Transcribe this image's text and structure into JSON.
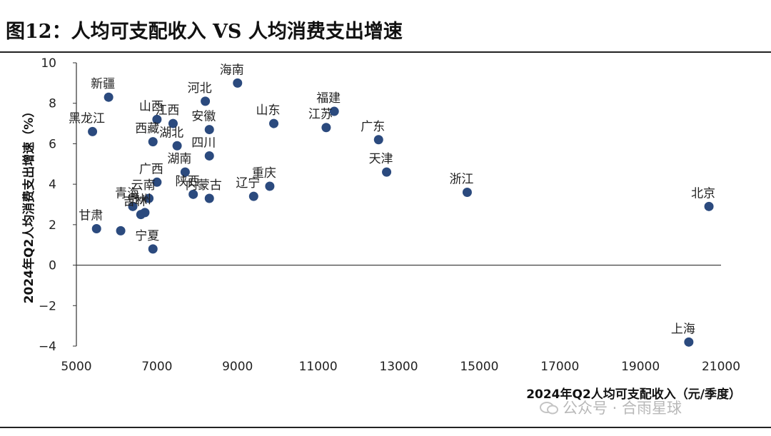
{
  "title": "图12：人均可支配收入 VS 人均消费支出增速",
  "watermark": "公众号 · 合雨星球",
  "colors": {
    "point": "#2b4a7e",
    "axis": "#333333"
  },
  "chart_data": {
    "type": "scatter",
    "title": "图12：人均可支配收入 VS 人均消费支出增速",
    "xlabel": "2024年Q2人均可支配收入（元/季度）",
    "ylabel": "2024年Q2人均消费支出增速（%）",
    "xlim": [
      5000,
      21000
    ],
    "ylim": [
      -4,
      10
    ],
    "xticks": [
      5000,
      7000,
      9000,
      11000,
      13000,
      15000,
      17000,
      19000,
      21000
    ],
    "yticks": [
      -4,
      -2,
      0,
      2,
      4,
      6,
      8,
      10
    ],
    "grid": false,
    "points": [
      {
        "label": "北京",
        "x": 20700,
        "y": 2.9
      },
      {
        "label": "上海",
        "x": 20200,
        "y": -3.8
      },
      {
        "label": "浙江",
        "x": 14700,
        "y": 3.6
      },
      {
        "label": "天津",
        "x": 12700,
        "y": 4.6
      },
      {
        "label": "广东",
        "x": 12500,
        "y": 6.2
      },
      {
        "label": "江苏",
        "x": 11200,
        "y": 6.8
      },
      {
        "label": "福建",
        "x": 11400,
        "y": 7.6
      },
      {
        "label": "山东",
        "x": 9900,
        "y": 7.0
      },
      {
        "label": "海南",
        "x": 9000,
        "y": 9.0
      },
      {
        "label": "河北",
        "x": 8200,
        "y": 8.1
      },
      {
        "label": "安徽",
        "x": 8300,
        "y": 6.7
      },
      {
        "label": "四川",
        "x": 8300,
        "y": 5.4
      },
      {
        "label": "重庆",
        "x": 9800,
        "y": 3.9
      },
      {
        "label": "辽宁",
        "x": 9400,
        "y": 3.4
      },
      {
        "label": "内蒙古",
        "x": 8300,
        "y": 3.3
      },
      {
        "label": "陕西",
        "x": 7900,
        "y": 3.5
      },
      {
        "label": "湖南",
        "x": 7700,
        "y": 4.6
      },
      {
        "label": "湖北",
        "x": 7500,
        "y": 5.9
      },
      {
        "label": "江西",
        "x": 7400,
        "y": 7.0
      },
      {
        "label": "山西",
        "x": 7000,
        "y": 7.2
      },
      {
        "label": "西藏",
        "x": 6900,
        "y": 6.1
      },
      {
        "label": "广西",
        "x": 7000,
        "y": 4.1
      },
      {
        "label": "云南",
        "x": 6800,
        "y": 3.3
      },
      {
        "label": "贵州",
        "x": 6700,
        "y": 2.6
      },
      {
        "label": "吉林",
        "x": 6600,
        "y": 2.5
      },
      {
        "label": "青海",
        "x": 6400,
        "y": 2.9
      },
      {
        "label": "甘肃",
        "x": 5500,
        "y": 1.8
      },
      {
        "label": "宁夏",
        "x": 6900,
        "y": 0.8
      },
      {
        "label": "新疆",
        "x": 5800,
        "y": 8.3
      },
      {
        "label": "黑龙江",
        "x": 5400,
        "y": 6.6
      },
      {
        "label": "",
        "x": 6100,
        "y": 1.7
      }
    ]
  }
}
